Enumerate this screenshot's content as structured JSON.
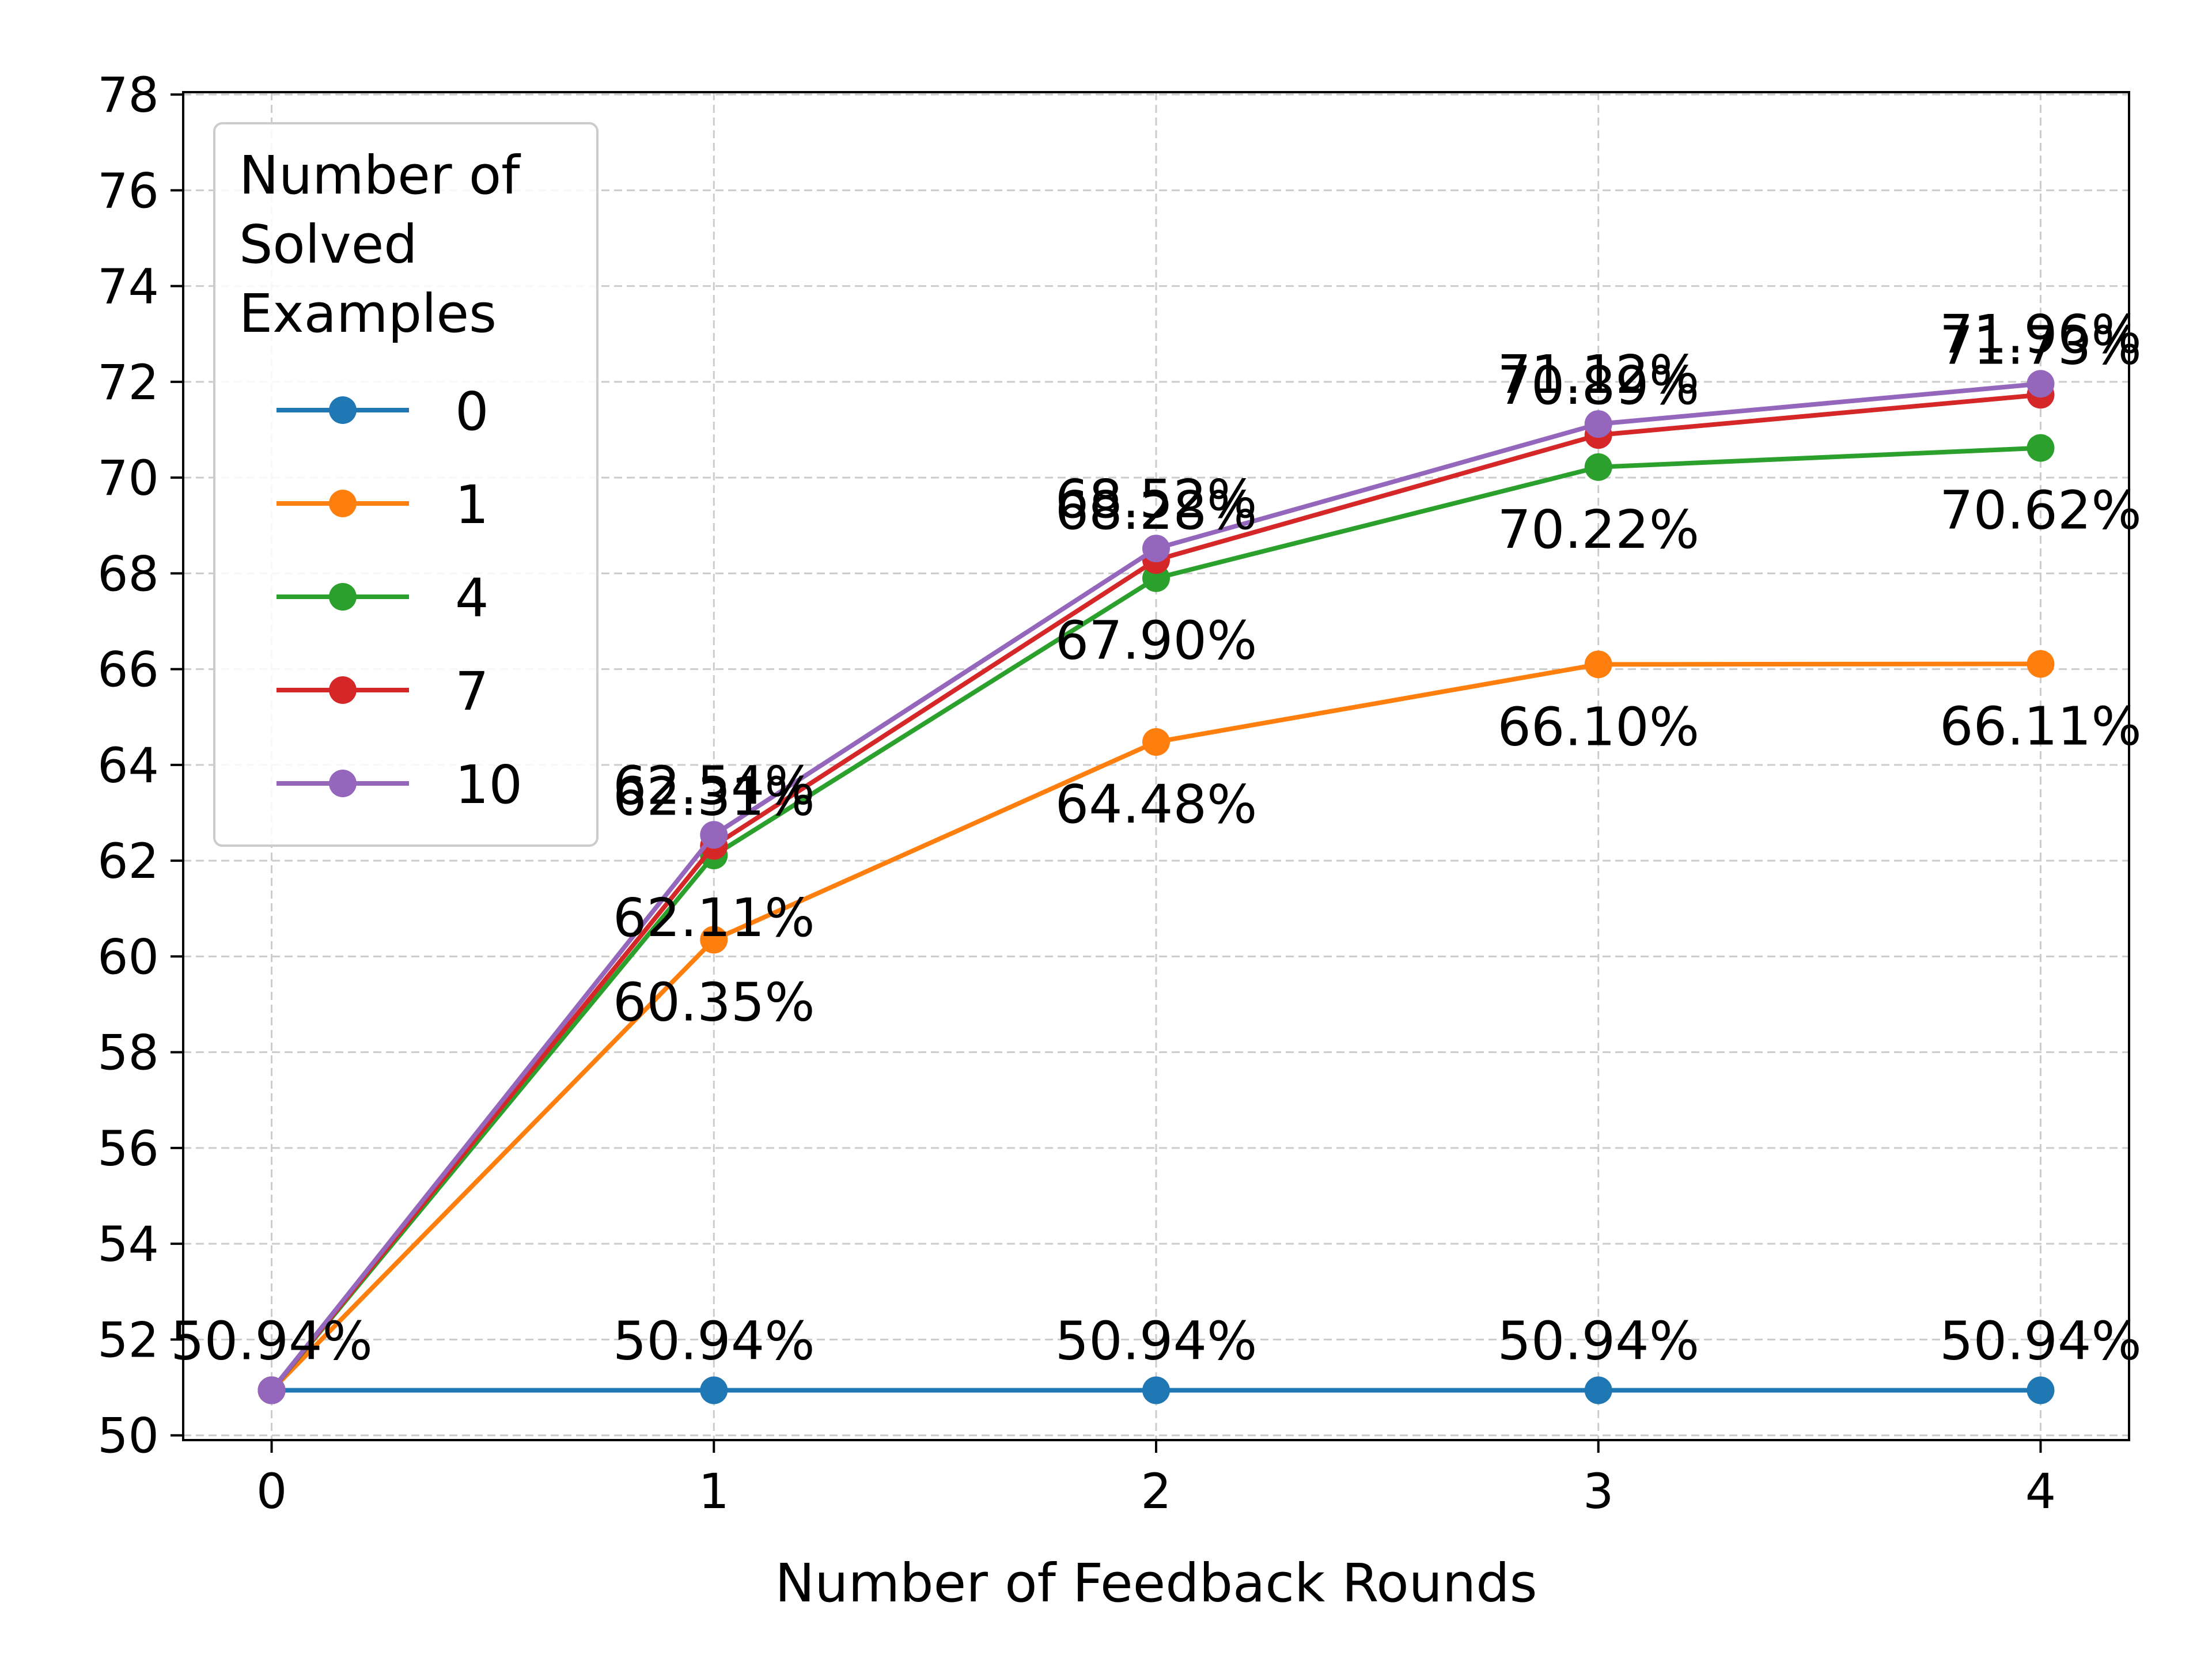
{
  "chart_data": {
    "type": "line",
    "title": "",
    "xlabel": "Number of Feedback Rounds",
    "ylabel": "",
    "x": [
      0,
      1,
      2,
      3,
      4
    ],
    "xticks": [
      "0",
      "1",
      "2",
      "3",
      "4"
    ],
    "ylim": [
      50,
      78
    ],
    "yticks": [
      "50",
      "52",
      "54",
      "56",
      "58",
      "60",
      "62",
      "64",
      "66",
      "68",
      "70",
      "72",
      "74",
      "76",
      "78"
    ],
    "grid": true,
    "legend": {
      "title": "Number of\nSolved\nExamples",
      "placement": "top-left"
    },
    "series": [
      {
        "name": "0",
        "color": "#1f77b4",
        "values": [
          50.94,
          50.94,
          50.94,
          50.94,
          50.94
        ],
        "labels": [
          "50.94%",
          "50.94%",
          "50.94%",
          "50.94%",
          "50.94%"
        ],
        "label_pos": [
          "above",
          "above",
          "above",
          "above",
          "above"
        ]
      },
      {
        "name": "1",
        "color": "#ff7f0e",
        "values": [
          50.94,
          60.35,
          64.48,
          66.1,
          66.11
        ],
        "labels": [
          "",
          "60.35%",
          "64.48%",
          "66.10%",
          "66.11%"
        ],
        "label_pos": [
          "none",
          "below",
          "below",
          "below",
          "below"
        ]
      },
      {
        "name": "4",
        "color": "#2ca02c",
        "values": [
          50.94,
          62.11,
          67.9,
          70.22,
          70.62
        ],
        "labels": [
          "",
          "62.11%",
          "67.90%",
          "70.22%",
          "70.62%"
        ],
        "label_pos": [
          "none",
          "below",
          "below",
          "below",
          "below"
        ]
      },
      {
        "name": "7",
        "color": "#d62728",
        "values": [
          50.94,
          62.31,
          68.28,
          70.89,
          71.73
        ],
        "labels": [
          "",
          "62.31%",
          "68.28%",
          "70.89%",
          "71.73%"
        ],
        "label_pos": [
          "none",
          "above",
          "above",
          "above",
          "above"
        ]
      },
      {
        "name": "10",
        "color": "#9467bd",
        "values": [
          50.94,
          62.54,
          68.52,
          71.12,
          71.96
        ],
        "labels": [
          "",
          "62.54%",
          "68.52%",
          "71.12%",
          "71.96%"
        ],
        "label_pos": [
          "none",
          "above",
          "above",
          "above",
          "above"
        ]
      }
    ]
  }
}
